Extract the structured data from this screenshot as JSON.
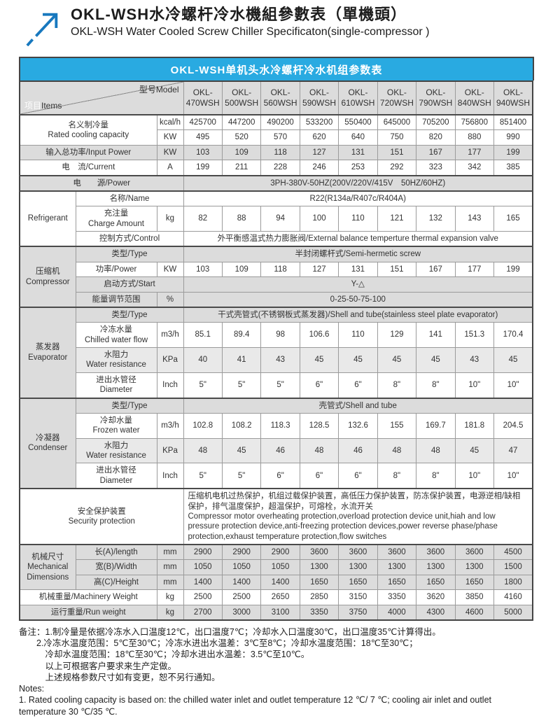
{
  "header": {
    "title_zh": "OKL-WSH水冷螺杆冷水機組參數表（單機頭）",
    "title_en": "OKL-WSH Water Cooled Screw Chiller Specificaton(single-compressor )",
    "logo_color": "#1778be"
  },
  "table": {
    "banner": "OKL-WSH单机头水冷螺杆冷水机组参数表",
    "banner_color": "#29aae1",
    "corner": {
      "items_zh": "项目",
      "items_en": "Items",
      "model": "型号Model"
    },
    "models": [
      "OKL-470WSH",
      "OKL-500WSH",
      "OKL-560WSH",
      "OKL-590WSH",
      "OKL-610WSH",
      "OKL-720WSH",
      "OKL-790WSH",
      "OKL-840WSH",
      "OKL-940WSH"
    ],
    "rows": [
      {
        "name": "row-rated-cooling-kcal",
        "section": true,
        "shade": "",
        "label": {
          "text": "名义制冷量\nRated cooling capacity",
          "colspan": 2,
          "rowspan": 2
        },
        "unit": "kcal/h",
        "values": [
          "425700",
          "447200",
          "490200",
          "533200",
          "550400",
          "645000",
          "705200",
          "756800",
          "851400"
        ]
      },
      {
        "name": "row-rated-cooling-kw",
        "shade": "",
        "unit": "KW",
        "values": [
          "495",
          "520",
          "570",
          "620",
          "640",
          "750",
          "820",
          "880",
          "990"
        ]
      },
      {
        "name": "row-input-power",
        "shade": "gray",
        "label": {
          "text": "输入总功率/Input Power",
          "colspan": 2
        },
        "unit": "KW",
        "values": [
          "103",
          "109",
          "118",
          "127",
          "131",
          "151",
          "167",
          "177",
          "199"
        ]
      },
      {
        "name": "row-current",
        "shade": "",
        "label": {
          "text": "电　流/Current",
          "colspan": 2
        },
        "unit": "A",
        "values": [
          "199",
          "211",
          "228",
          "246",
          "253",
          "292",
          "323",
          "342",
          "385"
        ]
      },
      {
        "name": "row-power-supply",
        "section": true,
        "shade": "gray",
        "label": {
          "text": "电　　源/Power",
          "colspan": 3
        },
        "value": "3PH-380V-50HZ(200V/220V/415V　50HZ/60HZ)"
      },
      {
        "name": "row-refrigerant-name",
        "section": true,
        "shade": "",
        "group": {
          "text": "Refrigerant",
          "rowspan": 3,
          "shade": ""
        },
        "label": {
          "text": "名称/Name",
          "colspan": 2
        },
        "value": "R22(R134a/R407c/R404A)"
      },
      {
        "name": "row-charge-amount",
        "shade": "",
        "label": {
          "text": "充注量\nCharge Amount",
          "colspan": 1
        },
        "unit": "kg",
        "values": [
          "82",
          "88",
          "94",
          "100",
          "110",
          "121",
          "132",
          "143",
          "165"
        ]
      },
      {
        "name": "row-control",
        "shade": "",
        "label": {
          "text": "控制方式/Control",
          "colspan": 2
        },
        "value": "外平衡感温式热力膨胀阀/External balance temperture thermal expansion valve"
      },
      {
        "name": "row-compressor-type",
        "section": true,
        "shade": "gray",
        "group": {
          "text": "压缩机\nCompressor",
          "rowspan": 4,
          "shade": "gray"
        },
        "label": {
          "text": "类型/Type",
          "colspan": 2
        },
        "value": "半封闭螺杆式/Semi-hermetic screw"
      },
      {
        "name": "row-compressor-power",
        "shade": "",
        "label": {
          "text": "功率/Power",
          "colspan": 1
        },
        "unit": "KW",
        "values": [
          "103",
          "109",
          "118",
          "127",
          "131",
          "151",
          "167",
          "177",
          "199"
        ]
      },
      {
        "name": "row-start-mode",
        "shade": "gray",
        "label": {
          "text": "启动方式/Start",
          "colspan": 2
        },
        "value": "Y-△"
      },
      {
        "name": "row-energy-range",
        "shade": "gray",
        "label": {
          "text": "能量调节范围",
          "colspan": 1
        },
        "unit": "%",
        "value": "0-25-50-75-100"
      },
      {
        "name": "row-evaporator-type",
        "section": true,
        "shade": "gray",
        "group": {
          "text": "蒸发器\nEvaporator",
          "rowspan": 4,
          "shade": "gray"
        },
        "label": {
          "text": "类型/Type",
          "colspan": 2
        },
        "value": "干式壳管式(不锈钢板式蒸发器)/Shell and tube(stainless steel plate evaporator)"
      },
      {
        "name": "row-chilled-water-flow",
        "shade": "",
        "label": {
          "text": "冷冻水量\nChilled water flow",
          "colspan": 1
        },
        "unit": "m3/h",
        "values": [
          "85.1",
          "89.4",
          "98",
          "106.6",
          "110",
          "129",
          "141",
          "151.3",
          "170.4"
        ]
      },
      {
        "name": "row-evap-water-resistance",
        "shade": "graylight",
        "label": {
          "text": "水阻力\nWater resistance",
          "colspan": 1
        },
        "unit": "KPa",
        "values": [
          "40",
          "41",
          "43",
          "45",
          "45",
          "45",
          "45",
          "43",
          "45"
        ]
      },
      {
        "name": "row-evap-diameter",
        "shade": "",
        "label": {
          "text": "进出水管径\nDiameter",
          "colspan": 1
        },
        "unit": "Inch",
        "values": [
          "5\"",
          "5\"",
          "5\"",
          "6\"",
          "6\"",
          "8\"",
          "8\"",
          "10\"",
          "10\""
        ]
      },
      {
        "name": "row-condenser-type",
        "section": true,
        "shade": "gray",
        "group": {
          "text": "冷凝器\nCondenser",
          "rowspan": 4,
          "shade": "gray"
        },
        "label": {
          "text": "类型/Type",
          "colspan": 2
        },
        "value": "壳管式/Shell and tube"
      },
      {
        "name": "row-frozen-water",
        "shade": "",
        "label": {
          "text": "冷却水量\nFrozen water",
          "colspan": 1
        },
        "unit": "m3/h",
        "values": [
          "102.8",
          "108.2",
          "118.3",
          "128.5",
          "132.6",
          "155",
          "169.7",
          "181.8",
          "204.5"
        ]
      },
      {
        "name": "row-cond-water-resistance",
        "shade": "graylight",
        "label": {
          "text": "水阻力\nWater resistance",
          "colspan": 1
        },
        "unit": "KPa",
        "values": [
          "48",
          "45",
          "46",
          "48",
          "46",
          "48",
          "48",
          "45",
          "47"
        ]
      },
      {
        "name": "row-cond-diameter",
        "shade": "",
        "label": {
          "text": "进出水管径\nDiameter",
          "colspan": 1
        },
        "unit": "Inch",
        "values": [
          "5\"",
          "5\"",
          "6\"",
          "6\"",
          "6\"",
          "8\"",
          "8\"",
          "10\"",
          "10\""
        ]
      },
      {
        "name": "row-security-protection",
        "section": true,
        "shade": "",
        "label": {
          "text": "安全保护装置\nSecurity protection",
          "colspan": 3
        },
        "value": "压缩机电机过热保护，机组过载保护装置，高低压力保护装置，防冻保护装置，电源逆相/缺相保护，排气温度保护，超温保护，可熔栓，水流开关\nCompressor motor overheating protection,overload protection device unit,hiah and low pressure protection device,anti-freezing protection devices,power reverse phase/phase protection,exhaust temperature protection,flow switches",
        "value_left": true
      },
      {
        "name": "row-length",
        "section": true,
        "shade": "gray",
        "group": {
          "text": "机械尺寸\nMechanical\nDimensions",
          "rowspan": 3,
          "shade": "gray"
        },
        "label": {
          "text": "长(A)/length",
          "colspan": 1
        },
        "unit": "mm",
        "values": [
          "2900",
          "2900",
          "2900",
          "3600",
          "3600",
          "3600",
          "3600",
          "3600",
          "4500"
        ]
      },
      {
        "name": "row-width",
        "shade": "gray",
        "label": {
          "text": "宽(B)/Width",
          "colspan": 1
        },
        "unit": "mm",
        "values": [
          "1050",
          "1050",
          "1050",
          "1300",
          "1300",
          "1300",
          "1300",
          "1300",
          "1500"
        ]
      },
      {
        "name": "row-height",
        "shade": "gray",
        "label": {
          "text": "高(C)/Height",
          "colspan": 1
        },
        "unit": "mm",
        "values": [
          "1400",
          "1400",
          "1400",
          "1650",
          "1650",
          "1650",
          "1650",
          "1650",
          "1800"
        ]
      },
      {
        "name": "row-machinery-weight",
        "shade": "",
        "label": {
          "text": "机械重量/Machinery Weight",
          "colspan": 2
        },
        "unit": "kg",
        "values": [
          "2500",
          "2500",
          "2650",
          "2850",
          "3150",
          "3350",
          "3620",
          "3850",
          "4160"
        ]
      },
      {
        "name": "row-run-weight",
        "shade": "gray",
        "label": {
          "text": "运行重量/Run weight",
          "colspan": 2
        },
        "unit": "kg",
        "values": [
          "2700",
          "3000",
          "3100",
          "3350",
          "3750",
          "4000",
          "4300",
          "4600",
          "5000"
        ]
      }
    ]
  },
  "notes": {
    "lines": [
      "备注：1.制冷量是依据冷冻水入口温度12℃，出口温度7℃；冷却水入口温度30℃，出口温度35℃计算得出。",
      "　　2.冷冻水温度范围：5℃至30℃；冷冻水进出水温差：3℃至8℃；冷却水温度范围：18℃至30℃；",
      "　　　冷却水温度范围：18℃至30℃；冷却水进出水温差：3.5℃至10℃。",
      "　　　以上可根据客户要求来生产定做。",
      "　　　上述规格参数尺寸如有变更，恕不另行通知。",
      "Notes:",
      "1. Rated cooling capacity is based on: the chilled water inlet and outlet temperature 12 ℃/ 7 ℃; cooling air inlet and outlet temperature 30 ℃/35 ℃."
    ]
  }
}
